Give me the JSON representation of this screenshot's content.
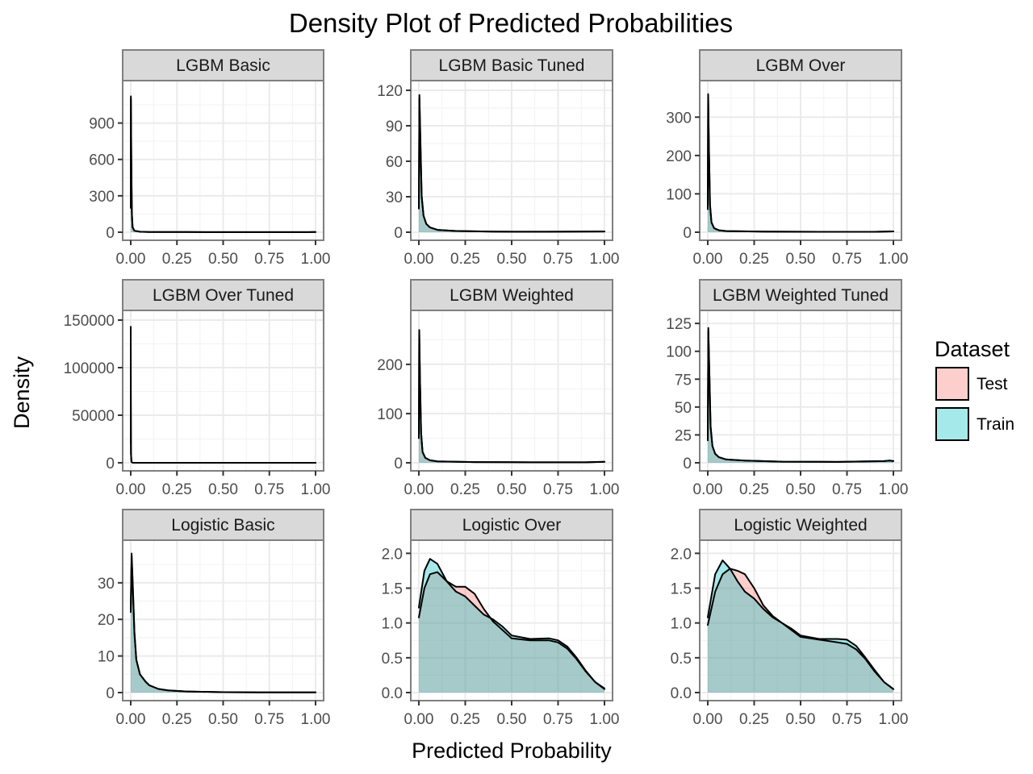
{
  "chart_data": {
    "type": "area",
    "title": "Density Plot of Predicted Probabilities",
    "xlabel": "Predicted Probability",
    "ylabel": "Density",
    "grid": true,
    "legend": {
      "title": "Dataset",
      "placement": "right",
      "entries": [
        {
          "name": "Test",
          "color": "#F8766D"
        },
        {
          "name": "Train",
          "color": "#00BFC4"
        }
      ]
    },
    "x_ticks": [
      "0.00",
      "0.25",
      "0.50",
      "0.75",
      "1.00"
    ],
    "xlim": [
      0,
      1
    ],
    "facets": [
      {
        "title": "LGBM Basic",
        "y_ticks": [
          0,
          300,
          600,
          900
        ],
        "y_tick_labels": [
          "0",
          "300",
          "600",
          "900"
        ],
        "ylim": [
          0,
          1170
        ],
        "series": [
          {
            "name": "Test",
            "x": [
              0,
              0.001,
              0.003,
              0.006,
              0.01,
              0.02,
              0.05,
              0.1,
              0.3,
              0.6,
              0.9,
              1.0
            ],
            "y": [
              200,
              1100,
              600,
              150,
              40,
              12,
              4,
              2,
              1,
              0.5,
              0.5,
              1
            ]
          },
          {
            "name": "Train",
            "x": [
              0,
              0.001,
              0.003,
              0.006,
              0.01,
              0.02,
              0.05,
              0.1,
              0.3,
              0.6,
              0.9,
              1.0
            ],
            "y": [
              210,
              1120,
              610,
              155,
              42,
              12,
              4,
              2,
              1,
              0.5,
              0.5,
              1
            ]
          }
        ]
      },
      {
        "title": "LGBM Basic Tuned",
        "y_ticks": [
          0,
          30,
          60,
          90,
          120
        ],
        "y_tick_labels": [
          "0",
          "30",
          "60",
          "90",
          "120"
        ],
        "ylim": [
          0,
          120
        ],
        "series": [
          {
            "name": "Test",
            "x": [
              0,
              0.003,
              0.008,
              0.015,
              0.025,
              0.04,
              0.06,
              0.1,
              0.2,
              0.4,
              0.7,
              1.0
            ],
            "y": [
              20,
              113,
              80,
              30,
              14,
              7,
              4,
              2,
              1,
              0.5,
              0.4,
              0.6
            ]
          },
          {
            "name": "Train",
            "x": [
              0,
              0.003,
              0.008,
              0.015,
              0.025,
              0.04,
              0.06,
              0.1,
              0.2,
              0.4,
              0.7,
              1.0
            ],
            "y": [
              22,
              116,
              82,
              31,
              14,
              7,
              4,
              2,
              1,
              0.5,
              0.4,
              0.6
            ]
          }
        ]
      },
      {
        "title": "LGBM Over",
        "y_ticks": [
          0,
          100,
          200,
          300
        ],
        "y_tick_labels": [
          "0",
          "100",
          "200",
          "300"
        ],
        "ylim": [
          0,
          370
        ],
        "series": [
          {
            "name": "Test",
            "x": [
              0,
              0.002,
              0.006,
              0.012,
              0.02,
              0.035,
              0.06,
              0.1,
              0.3,
              0.6,
              0.9,
              1.0
            ],
            "y": [
              60,
              355,
              220,
              70,
              25,
              10,
              5,
              3,
              1.5,
              1,
              1,
              2
            ]
          },
          {
            "name": "Train",
            "x": [
              0,
              0.002,
              0.006,
              0.012,
              0.02,
              0.035,
              0.06,
              0.1,
              0.3,
              0.6,
              0.9,
              1.0
            ],
            "y": [
              62,
              360,
              225,
              72,
              26,
              10,
              5,
              3,
              1.5,
              1,
              1,
              2
            ]
          }
        ]
      },
      {
        "title": "LGBM Over Tuned",
        "y_ticks": [
          0,
          50000,
          100000,
          150000
        ],
        "y_tick_labels": [
          "0",
          "50000",
          "100000",
          "150000"
        ],
        "ylim": [
          0,
          150000
        ],
        "series": [
          {
            "name": "Test",
            "x": [
              0,
              0.0002,
              0.0006,
              0.0015,
              0.004,
              0.01,
              0.05,
              0.3,
              0.7,
              1.0
            ],
            "y": [
              20000,
              140000,
              70000,
              10000,
              1000,
              100,
              10,
              5,
              5,
              5
            ]
          },
          {
            "name": "Train",
            "x": [
              0,
              0.0002,
              0.0006,
              0.0015,
              0.004,
              0.01,
              0.05,
              0.3,
              0.7,
              1.0
            ],
            "y": [
              21000,
              143000,
              72000,
              10000,
              1000,
              100,
              10,
              5,
              5,
              5
            ]
          }
        ]
      },
      {
        "title": "LGBM Weighted",
        "y_ticks": [
          0,
          100,
          200
        ],
        "y_tick_labels": [
          "0",
          "100",
          "200"
        ],
        "ylim": [
          0,
          290
        ],
        "series": [
          {
            "name": "Test",
            "x": [
              0,
              0.002,
              0.006,
              0.012,
              0.02,
              0.035,
              0.06,
              0.1,
              0.3,
              0.6,
              0.9,
              1.0
            ],
            "y": [
              50,
              265,
              170,
              60,
              22,
              10,
              5,
              3,
              1.5,
              1,
              1,
              2
            ]
          },
          {
            "name": "Train",
            "x": [
              0,
              0.002,
              0.006,
              0.012,
              0.02,
              0.035,
              0.06,
              0.1,
              0.3,
              0.6,
              0.9,
              1.0
            ],
            "y": [
              52,
              270,
              172,
              61,
              22,
              10,
              5,
              3,
              1.5,
              1,
              1,
              2
            ]
          }
        ]
      },
      {
        "title": "LGBM Weighted Tuned",
        "y_ticks": [
          0,
          25,
          50,
          75,
          100,
          125
        ],
        "y_tick_labels": [
          "0",
          "25",
          "50",
          "75",
          "100",
          "125"
        ],
        "ylim": [
          0,
          128
        ],
        "series": [
          {
            "name": "Test",
            "x": [
              0,
              0.003,
              0.008,
              0.015,
              0.025,
              0.04,
              0.06,
              0.1,
              0.2,
              0.4,
              0.7,
              0.95,
              0.98,
              1.0
            ],
            "y": [
              20,
              118,
              85,
              32,
              15,
              8,
              5,
              3,
              2,
              1,
              0.8,
              1.5,
              2,
              1.5
            ]
          },
          {
            "name": "Train",
            "x": [
              0,
              0.003,
              0.008,
              0.015,
              0.025,
              0.04,
              0.06,
              0.1,
              0.2,
              0.4,
              0.7,
              0.95,
              0.98,
              1.0
            ],
            "y": [
              22,
              121,
              87,
              33,
              15,
              8,
              5,
              3,
              2,
              1,
              0.8,
              1.5,
              2,
              1.5
            ]
          }
        ]
      },
      {
        "title": "Logistic Basic",
        "y_ticks": [
          0,
          10,
          20,
          30
        ],
        "y_tick_labels": [
          "0",
          "10",
          "20",
          "30"
        ],
        "ylim": [
          0,
          39
        ],
        "series": [
          {
            "name": "Test",
            "x": [
              0,
              0.005,
              0.01,
              0.02,
              0.03,
              0.05,
              0.08,
              0.1,
              0.15,
              0.2,
              0.3,
              0.5,
              0.7,
              1.0
            ],
            "y": [
              22,
              37,
              30,
              16,
              9,
              5,
              3,
              2,
              1,
              0.6,
              0.3,
              0.1,
              0.05,
              0.05
            ]
          },
          {
            "name": "Train",
            "x": [
              0,
              0.005,
              0.01,
              0.02,
              0.03,
              0.05,
              0.08,
              0.1,
              0.15,
              0.2,
              0.3,
              0.5,
              0.7,
              1.0
            ],
            "y": [
              22.5,
              38,
              31,
              16.5,
              9,
              5,
              3,
              2,
              1,
              0.6,
              0.3,
              0.1,
              0.05,
              0.05
            ]
          }
        ]
      },
      {
        "title": "Logistic Over",
        "y_ticks": [
          0,
          0.5,
          1.0,
          1.5,
          2.0
        ],
        "y_tick_labels": [
          "0.0",
          "0.5",
          "1.0",
          "1.5",
          "2.0"
        ],
        "ylim": [
          0,
          2.05
        ],
        "series": [
          {
            "name": "Test",
            "x": [
              0,
              0.03,
              0.06,
              0.1,
              0.15,
              0.2,
              0.25,
              0.3,
              0.35,
              0.4,
              0.45,
              0.5,
              0.6,
              0.7,
              0.75,
              0.8,
              0.85,
              0.9,
              0.95,
              1.0
            ],
            "y": [
              1.08,
              1.5,
              1.7,
              1.73,
              1.6,
              1.52,
              1.52,
              1.42,
              1.2,
              1.02,
              0.9,
              0.78,
              0.75,
              0.75,
              0.72,
              0.63,
              0.48,
              0.3,
              0.15,
              0.05
            ]
          },
          {
            "name": "Train",
            "x": [
              0,
              0.03,
              0.06,
              0.1,
              0.15,
              0.2,
              0.25,
              0.3,
              0.35,
              0.4,
              0.45,
              0.5,
              0.6,
              0.7,
              0.75,
              0.8,
              0.85,
              0.9,
              0.95,
              1.0
            ],
            "y": [
              1.22,
              1.75,
              1.92,
              1.85,
              1.6,
              1.45,
              1.38,
              1.25,
              1.12,
              1.05,
              0.95,
              0.82,
              0.77,
              0.78,
              0.75,
              0.66,
              0.5,
              0.31,
              0.15,
              0.06
            ]
          }
        ]
      },
      {
        "title": "Logistic Weighted",
        "y_ticks": [
          0,
          0.5,
          1.0,
          1.5,
          2.0
        ],
        "y_tick_labels": [
          "0.0",
          "0.5",
          "1.0",
          "1.5",
          "2.0"
        ],
        "ylim": [
          0,
          2.05
        ],
        "series": [
          {
            "name": "Test",
            "x": [
              0,
              0.04,
              0.08,
              0.12,
              0.16,
              0.2,
              0.25,
              0.3,
              0.35,
              0.4,
              0.45,
              0.5,
              0.6,
              0.7,
              0.75,
              0.8,
              0.85,
              0.9,
              0.95,
              1.0
            ],
            "y": [
              0.97,
              1.45,
              1.7,
              1.78,
              1.75,
              1.7,
              1.5,
              1.25,
              1.1,
              1.0,
              0.9,
              0.8,
              0.76,
              0.72,
              0.7,
              0.62,
              0.48,
              0.3,
              0.15,
              0.05
            ]
          },
          {
            "name": "Train",
            "x": [
              0,
              0.04,
              0.08,
              0.12,
              0.16,
              0.2,
              0.25,
              0.3,
              0.35,
              0.4,
              0.45,
              0.5,
              0.6,
              0.7,
              0.75,
              0.8,
              0.85,
              0.9,
              0.95,
              1.0
            ],
            "y": [
              1.08,
              1.7,
              1.9,
              1.78,
              1.6,
              1.45,
              1.35,
              1.2,
              1.08,
              1.0,
              0.92,
              0.82,
              0.77,
              0.77,
              0.76,
              0.67,
              0.5,
              0.32,
              0.15,
              0.05
            ]
          }
        ]
      }
    ]
  }
}
